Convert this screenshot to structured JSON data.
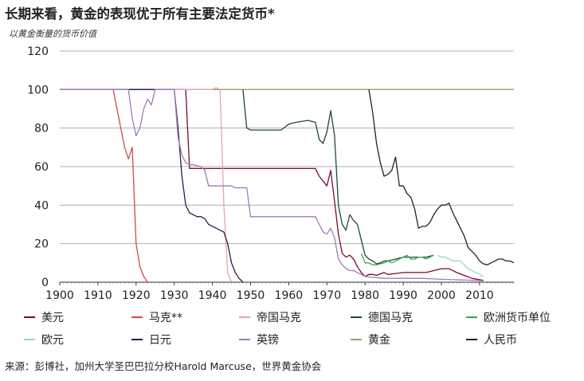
{
  "chart_data": {
    "type": "line",
    "title": "长期来看，黄金的表现优于所有主要法定货币*",
    "subtitle": "以黄金衡量的货币价值",
    "xlabel": "",
    "ylabel": "",
    "xlim": [
      1900,
      2019
    ],
    "ylim": [
      0,
      120
    ],
    "x_ticks": [
      1900,
      1910,
      1920,
      1930,
      1940,
      1950,
      1960,
      1970,
      1980,
      1990,
      2000,
      2010
    ],
    "y_ticks": [
      0,
      20,
      40,
      60,
      80,
      100,
      120
    ],
    "grid": "horizontal",
    "legend_position": "bottom",
    "series": [
      {
        "name": "美元",
        "color": "#7a0a2c",
        "points": [
          [
            1900,
            100
          ],
          [
            1933,
            100
          ],
          [
            1934,
            59
          ],
          [
            1967,
            59
          ],
          [
            1968,
            55
          ],
          [
            1970,
            50
          ],
          [
            1971,
            58
          ],
          [
            1972,
            42
          ],
          [
            1973,
            25
          ],
          [
            1974,
            15
          ],
          [
            1975,
            13
          ],
          [
            1976,
            14
          ],
          [
            1977,
            12
          ],
          [
            1978,
            8
          ],
          [
            1979,
            5
          ],
          [
            1980,
            3
          ],
          [
            1981,
            4
          ],
          [
            1982,
            4
          ],
          [
            1983,
            3.5
          ],
          [
            1985,
            5
          ],
          [
            1986,
            4
          ],
          [
            1988,
            4.5
          ],
          [
            1990,
            5
          ],
          [
            1992,
            5
          ],
          [
            1994,
            5
          ],
          [
            1996,
            5
          ],
          [
            1998,
            6
          ],
          [
            2000,
            7
          ],
          [
            2002,
            7
          ],
          [
            2004,
            5
          ],
          [
            2006,
            3.5
          ],
          [
            2008,
            2
          ],
          [
            2010,
            1.3
          ],
          [
            2011,
            1
          ]
        ]
      },
      {
        "name": "马克**",
        "color": "#cf4a4a",
        "points": [
          [
            1900,
            100
          ],
          [
            1914,
            100
          ],
          [
            1915,
            90
          ],
          [
            1916,
            80
          ],
          [
            1917,
            70
          ],
          [
            1918,
            64
          ],
          [
            1919,
            70
          ],
          [
            1920,
            20
          ],
          [
            1921,
            8
          ],
          [
            1922,
            3
          ],
          [
            1923,
            0
          ]
        ]
      },
      {
        "name": "帝国马克",
        "color": "#e8a3ab",
        "points": [
          [
            1924,
            100
          ],
          [
            1939,
            100
          ],
          [
            1940,
            100
          ],
          [
            1941,
            101
          ],
          [
            1942,
            100
          ],
          [
            1943,
            40
          ],
          [
            1944,
            5
          ],
          [
            1945,
            0
          ]
        ]
      },
      {
        "name": "德国马克",
        "color": "#1f4a32",
        "points": [
          [
            1948,
            100
          ],
          [
            1949,
            80
          ],
          [
            1950,
            79
          ],
          [
            1952,
            79
          ],
          [
            1955,
            79
          ],
          [
            1958,
            79
          ],
          [
            1960,
            82
          ],
          [
            1962,
            83
          ],
          [
            1965,
            84
          ],
          [
            1967,
            83
          ],
          [
            1968,
            74
          ],
          [
            1969,
            72
          ],
          [
            1970,
            78
          ],
          [
            1971,
            89
          ],
          [
            1972,
            76
          ],
          [
            1973,
            40
          ],
          [
            1974,
            30
          ],
          [
            1975,
            27
          ],
          [
            1976,
            35
          ],
          [
            1977,
            32
          ],
          [
            1978,
            30
          ],
          [
            1979,
            22
          ],
          [
            1980,
            14
          ],
          [
            1981,
            12
          ],
          [
            1982,
            11
          ],
          [
            1983,
            9.5
          ],
          [
            1984,
            10
          ],
          [
            1985,
            11
          ],
          [
            1986,
            11
          ],
          [
            1988,
            12
          ],
          [
            1990,
            13
          ],
          [
            1992,
            13
          ],
          [
            1994,
            13
          ],
          [
            1996,
            13
          ],
          [
            1998,
            14
          ]
        ]
      },
      {
        "name": "欧洲货币单位",
        "color": "#3aa25a",
        "points": [
          [
            1979,
            15
          ],
          [
            1980,
            10
          ],
          [
            1981,
            10
          ],
          [
            1982,
            9
          ],
          [
            1983,
            9
          ],
          [
            1984,
            9.5
          ],
          [
            1985,
            10
          ],
          [
            1986,
            11
          ],
          [
            1987,
            10
          ],
          [
            1988,
            11
          ],
          [
            1989,
            12
          ],
          [
            1990,
            13
          ],
          [
            1991,
            14
          ],
          [
            1992,
            12
          ],
          [
            1993,
            12
          ],
          [
            1994,
            13
          ],
          [
            1995,
            13
          ],
          [
            1996,
            12
          ],
          [
            1997,
            13
          ],
          [
            1998,
            14
          ]
        ]
      },
      {
        "name": "欧元",
        "color": "#9dd8b6",
        "points": [
          [
            1999,
            14
          ],
          [
            2000,
            13
          ],
          [
            2001,
            13
          ],
          [
            2002,
            12
          ],
          [
            2003,
            11
          ],
          [
            2004,
            11
          ],
          [
            2005,
            11
          ],
          [
            2006,
            9
          ],
          [
            2007,
            7
          ],
          [
            2008,
            6
          ],
          [
            2009,
            5
          ],
          [
            2010,
            4
          ],
          [
            2011,
            3
          ]
        ]
      },
      {
        "name": "日元",
        "color": "#2c1a4a",
        "points": [
          [
            1900,
            100
          ],
          [
            1930,
            100
          ],
          [
            1931,
            80
          ],
          [
            1932,
            55
          ],
          [
            1933,
            40
          ],
          [
            1934,
            36
          ],
          [
            1935,
            35
          ],
          [
            1936,
            34
          ],
          [
            1937,
            34
          ],
          [
            1938,
            33
          ],
          [
            1939,
            30
          ],
          [
            1940,
            29
          ],
          [
            1941,
            28
          ],
          [
            1942,
            27
          ],
          [
            1943,
            26
          ],
          [
            1944,
            20
          ],
          [
            1945,
            10
          ],
          [
            1946,
            5
          ],
          [
            1947,
            2
          ],
          [
            1948,
            0
          ]
        ]
      },
      {
        "name": "英镑",
        "color": "#a07ab8",
        "points": [
          [
            1900,
            100
          ],
          [
            1918,
            100
          ],
          [
            1919,
            85
          ],
          [
            1920,
            76
          ],
          [
            1921,
            80
          ],
          [
            1922,
            90
          ],
          [
            1923,
            95
          ],
          [
            1924,
            92
          ],
          [
            1925,
            100
          ],
          [
            1930,
            100
          ],
          [
            1931,
            75
          ],
          [
            1932,
            66
          ],
          [
            1933,
            62
          ],
          [
            1934,
            61
          ],
          [
            1935,
            61
          ],
          [
            1937,
            60
          ],
          [
            1938,
            58
          ],
          [
            1939,
            50
          ],
          [
            1945,
            50
          ],
          [
            1946,
            49
          ],
          [
            1949,
            49
          ],
          [
            1950,
            34
          ],
          [
            1967,
            34
          ],
          [
            1968,
            30
          ],
          [
            1969,
            26
          ],
          [
            1970,
            25
          ],
          [
            1971,
            28
          ],
          [
            1972,
            23
          ],
          [
            1973,
            12
          ],
          [
            1974,
            9
          ],
          [
            1975,
            7
          ],
          [
            1976,
            6
          ],
          [
            1977,
            6
          ],
          [
            1978,
            5
          ],
          [
            1979,
            4
          ],
          [
            1980,
            3
          ],
          [
            1982,
            2.5
          ],
          [
            1985,
            2
          ],
          [
            1990,
            2
          ],
          [
            1995,
            2
          ],
          [
            2000,
            1.5
          ],
          [
            2005,
            1.2
          ],
          [
            2008,
            1
          ],
          [
            2011,
            0.7
          ]
        ]
      },
      {
        "name": "黄金",
        "color": "#a89a6c",
        "points": [
          [
            1900,
            100
          ],
          [
            2019,
            100
          ]
        ]
      },
      {
        "name": "人民币",
        "color": "#222222",
        "points": [
          [
            1981,
            100
          ],
          [
            1982,
            88
          ],
          [
            1983,
            72
          ],
          [
            1984,
            62
          ],
          [
            1985,
            55
          ],
          [
            1986,
            56
          ],
          [
            1987,
            58
          ],
          [
            1988,
            65
          ],
          [
            1989,
            50
          ],
          [
            1990,
            50
          ],
          [
            1991,
            46
          ],
          [
            1992,
            44
          ],
          [
            1993,
            38
          ],
          [
            1994,
            28
          ],
          [
            1995,
            29
          ],
          [
            1996,
            29
          ],
          [
            1997,
            31
          ],
          [
            1998,
            35
          ],
          [
            1999,
            38
          ],
          [
            2000,
            40
          ],
          [
            2001,
            40
          ],
          [
            2002,
            41
          ],
          [
            2003,
            36
          ],
          [
            2004,
            32
          ],
          [
            2005,
            28
          ],
          [
            2006,
            24
          ],
          [
            2007,
            18
          ],
          [
            2008,
            16
          ],
          [
            2009,
            14
          ],
          [
            2010,
            11
          ],
          [
            2011,
            9.5
          ],
          [
            2012,
            9
          ],
          [
            2013,
            10
          ],
          [
            2014,
            11
          ],
          [
            2015,
            12
          ],
          [
            2016,
            12
          ],
          [
            2017,
            11
          ],
          [
            2018,
            11
          ],
          [
            2019,
            10
          ]
        ]
      }
    ]
  },
  "source": "来源：彭博社，加州大学圣巴巴拉分校Harold Marcuse，世界黄金协会"
}
